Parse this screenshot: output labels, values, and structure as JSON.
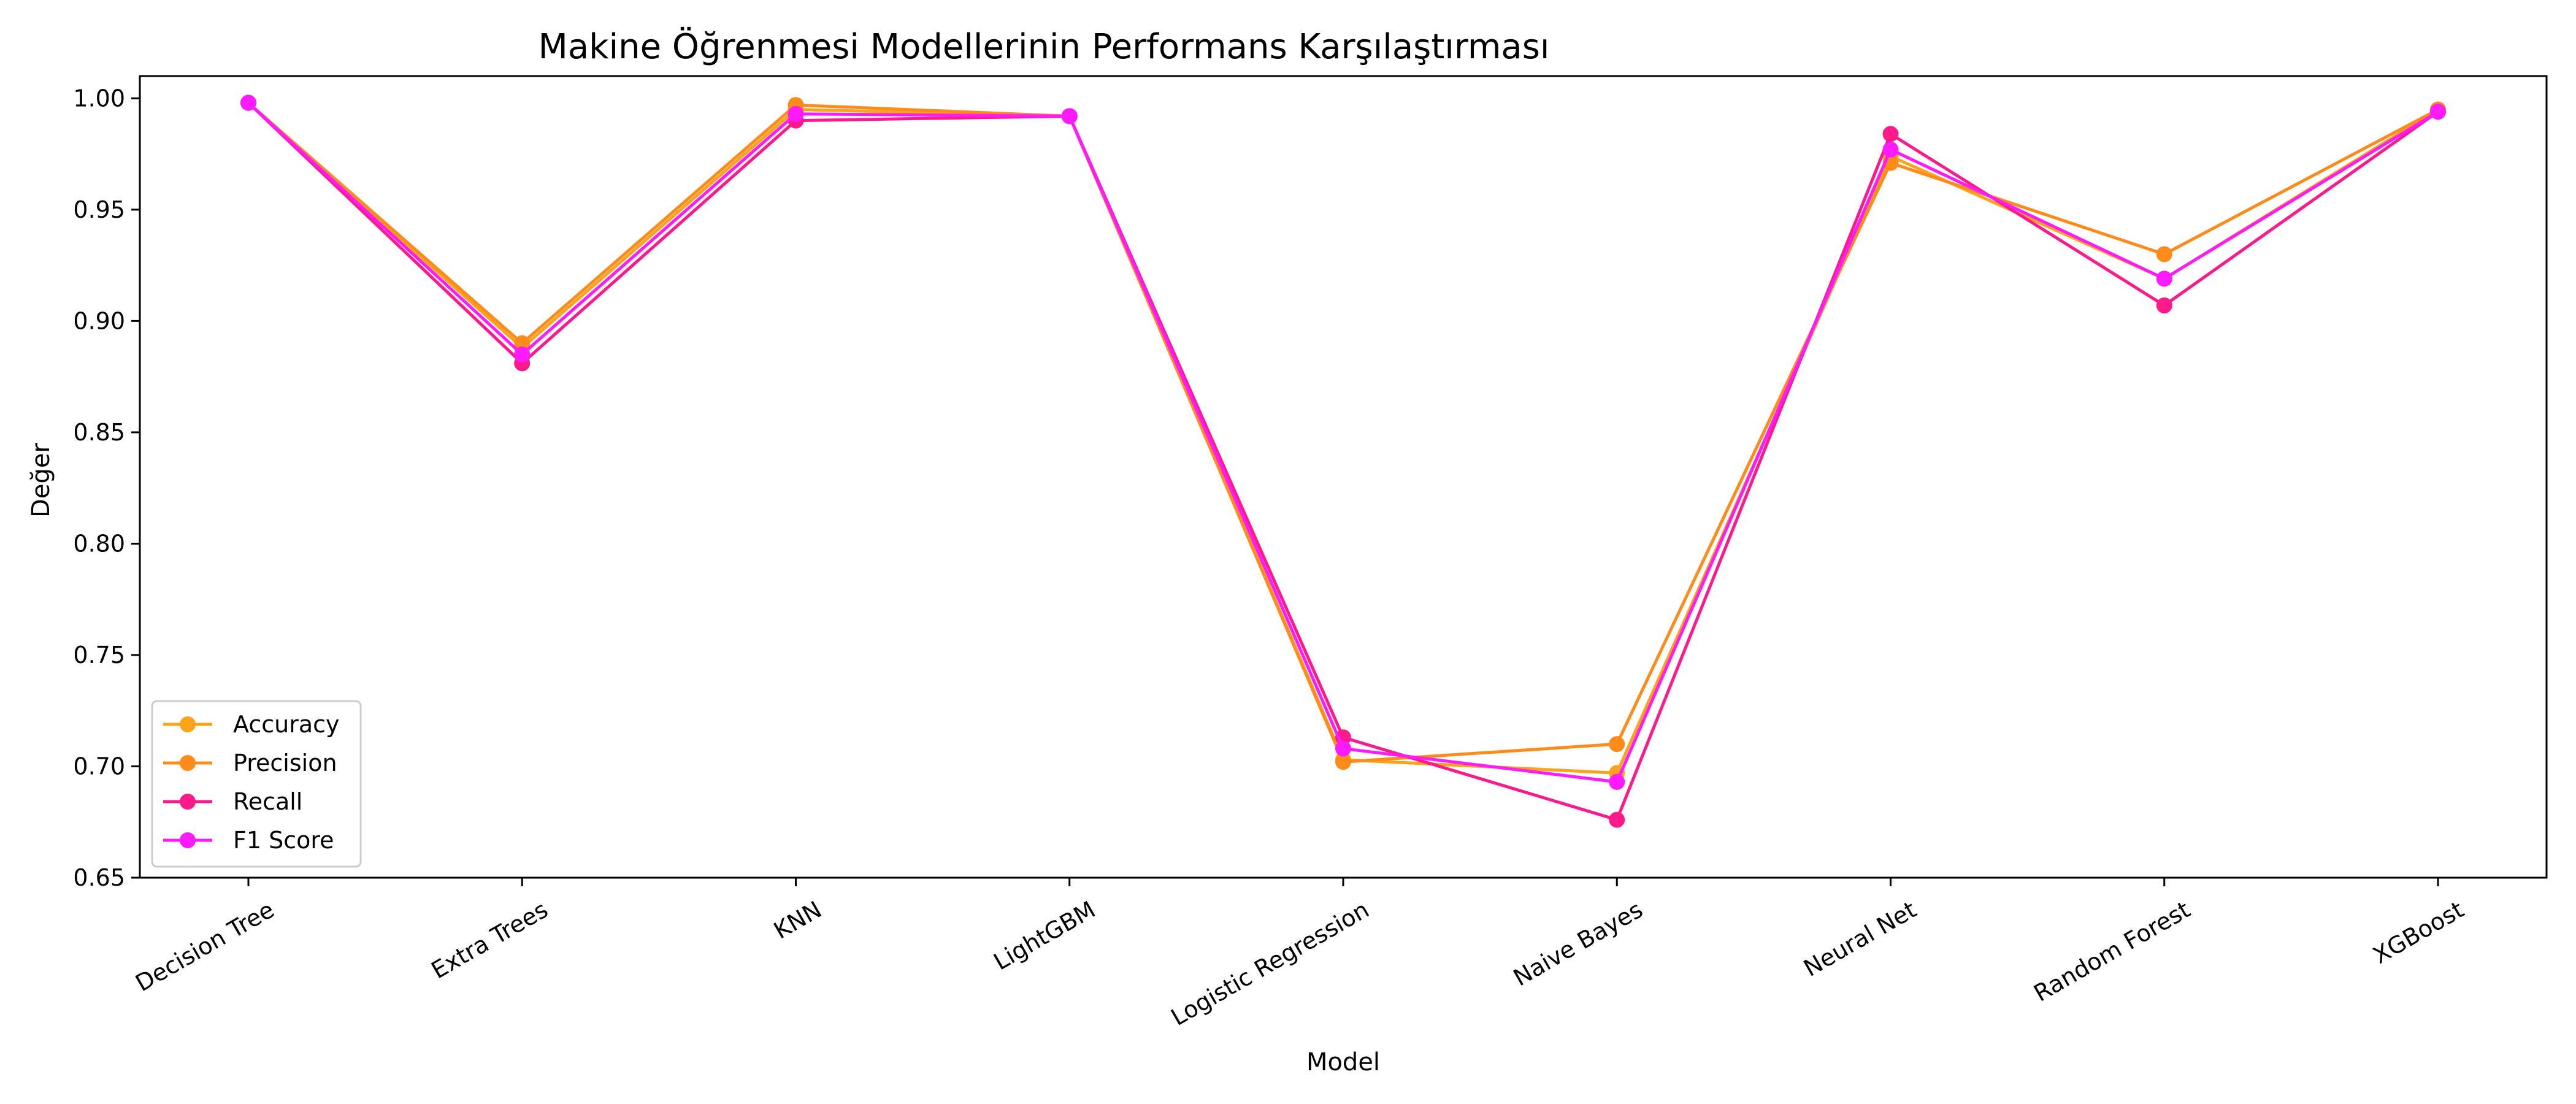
{
  "chart_data": {
    "type": "line",
    "title": "Makine Öğrenmesi Modellerinin Performans Karşılaştırması",
    "xlabel": "Model",
    "ylabel": "Değer",
    "categories": [
      "Decision Tree",
      "Extra Trees",
      "KNN",
      "LightGBM",
      "Logistic Regression",
      "Naive Bayes",
      "Neural Net",
      "Random Forest",
      "XGBoost"
    ],
    "ylim": [
      0.65,
      1.01
    ],
    "yticks": [
      "0.65",
      "0.70",
      "0.75",
      "0.80",
      "0.85",
      "0.90",
      "0.95",
      "1.00"
    ],
    "grid": false,
    "legend_position": "lower-left",
    "series": [
      {
        "name": "Accuracy",
        "color": "#ffa31a",
        "values": [
          0.998,
          0.888,
          0.995,
          0.992,
          0.703,
          0.697,
          0.974,
          0.919,
          0.995
        ]
      },
      {
        "name": "Precision",
        "color": "#ff8c1a",
        "values": [
          0.998,
          0.89,
          0.997,
          0.992,
          0.702,
          0.71,
          0.971,
          0.93,
          0.995
        ]
      },
      {
        "name": "Recall",
        "color": "#ff1a8c",
        "values": [
          0.998,
          0.881,
          0.99,
          0.992,
          0.713,
          0.676,
          0.984,
          0.907,
          0.994
        ]
      },
      {
        "name": "F1 Score",
        "color": "#ff1aff",
        "values": [
          0.998,
          0.885,
          0.993,
          0.992,
          0.708,
          0.693,
          0.977,
          0.919,
          0.994
        ]
      }
    ]
  }
}
